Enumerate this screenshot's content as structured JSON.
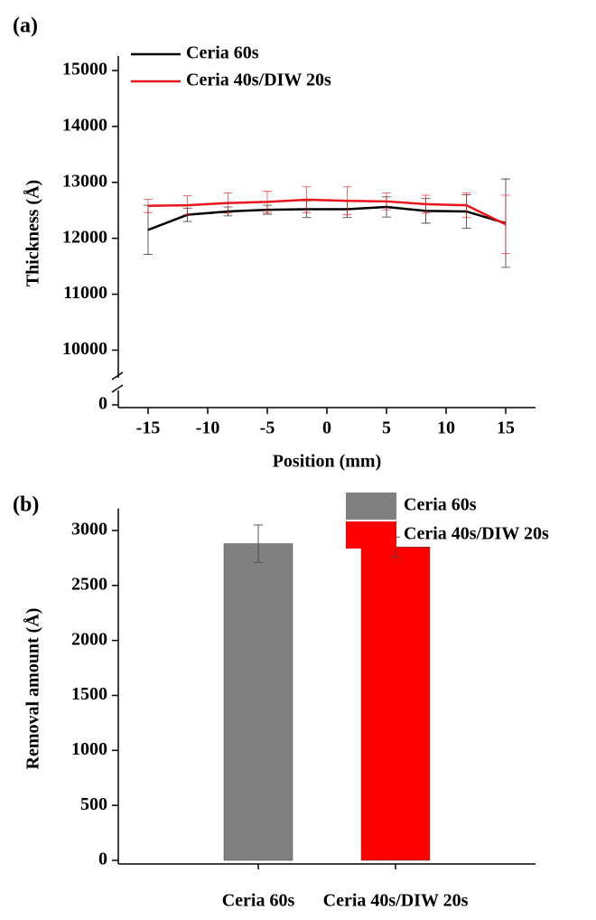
{
  "chart_data": [
    {
      "type": "line",
      "panel_label": "(a)",
      "x_label": "Position (mm)",
      "y_label": "Thickness (Å)",
      "x": [
        -15,
        -11.7,
        -8.3,
        -5,
        -1.7,
        1.7,
        5,
        8.3,
        11.7,
        15
      ],
      "series": [
        {
          "name": "Ceria 60s",
          "color": "#000000",
          "values": [
            12150,
            12420,
            12480,
            12510,
            12520,
            12520,
            12560,
            12490,
            12480,
            12270
          ],
          "errors": [
            440,
            120,
            80,
            80,
            150,
            150,
            180,
            220,
            300,
            790
          ]
        },
        {
          "name": "Ceria 40s/DIW 20s",
          "color": "#e8141b",
          "values": [
            12580,
            12590,
            12630,
            12650,
            12690,
            12670,
            12660,
            12610,
            12590,
            12250
          ],
          "errors": [
            120,
            170,
            180,
            190,
            230,
            250,
            150,
            160,
            220,
            520
          ]
        }
      ],
      "xlim": [
        -17.5,
        17.5
      ],
      "xticks": [
        -15,
        -10,
        -5,
        0,
        5,
        10,
        15
      ],
      "ylim": [
        0,
        15000
      ],
      "yticks": [
        0,
        10000,
        11000,
        12000,
        13000,
        14000,
        15000
      ],
      "axis_break": [
        0,
        9700
      ],
      "legend": "upper left"
    },
    {
      "type": "bar",
      "panel_label": "(b)",
      "y_label": "Removal amount (Å)",
      "categories": [
        "Ceria 60s",
        "Ceria 40s/DIW 20s"
      ],
      "values": [
        2880,
        2850
      ],
      "errors": [
        170,
        90
      ],
      "colors": [
        "#808080",
        "#ff0000"
      ],
      "ylim": [
        0,
        3200
      ],
      "yticks": [
        0,
        500,
        1000,
        1500,
        2000,
        2500,
        3000
      ],
      "legend": "upper right"
    }
  ]
}
